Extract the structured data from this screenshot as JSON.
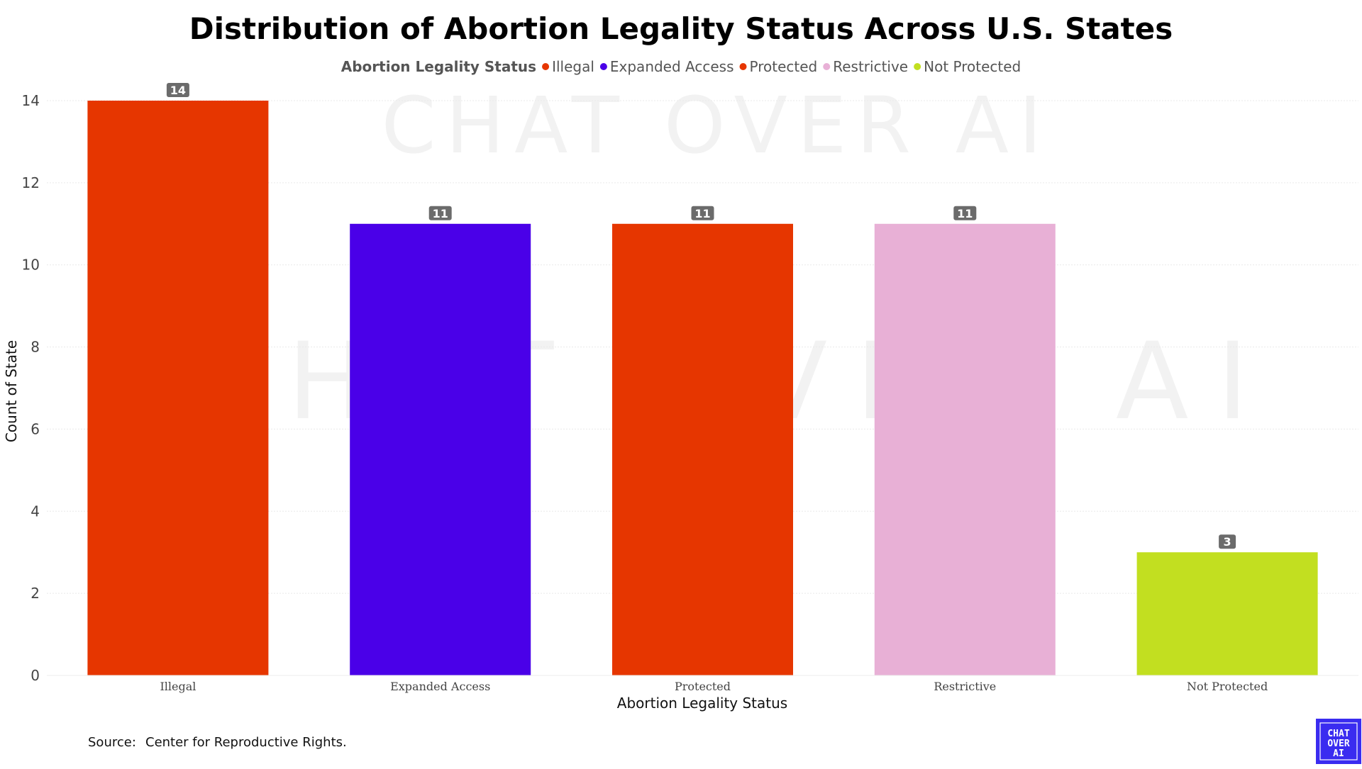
{
  "chart_data": {
    "type": "bar",
    "title": "Distribution of Abortion Legality Status Across U.S. States",
    "xlabel": "Abortion Legality Status",
    "ylabel": "Count of State",
    "categories": [
      "Illegal",
      "Expanded Access",
      "Protected",
      "Restrictive",
      "Not Protected"
    ],
    "values": [
      14,
      11,
      11,
      11,
      3
    ],
    "colors": [
      "#e63600",
      "#4a00e8",
      "#e63600",
      "#e8b0d6",
      "#c2df20"
    ],
    "ylim": [
      0,
      14
    ],
    "yticks": [
      0,
      2,
      4,
      6,
      8,
      10,
      12,
      14
    ],
    "grid": true,
    "legend": {
      "title": "Abortion Legality Status",
      "placement": "top-center",
      "entries": [
        {
          "label": "Illegal",
          "color": "#e63600"
        },
        {
          "label": "Expanded Access",
          "color": "#4a00e8"
        },
        {
          "label": "Protected",
          "color": "#e63600"
        },
        {
          "label": "Restrictive",
          "color": "#e8b0d6"
        },
        {
          "label": "Not Protected",
          "color": "#c2df20"
        }
      ]
    },
    "data_labels": true
  },
  "source": {
    "label": "Source:",
    "text": "Center for Reproductive Rights."
  },
  "watermark": {
    "text": "CHAT OVER AI"
  },
  "logo": {
    "lines": [
      "CHAT",
      "OVER",
      "AI"
    ],
    "color": "#3a2cf0"
  }
}
